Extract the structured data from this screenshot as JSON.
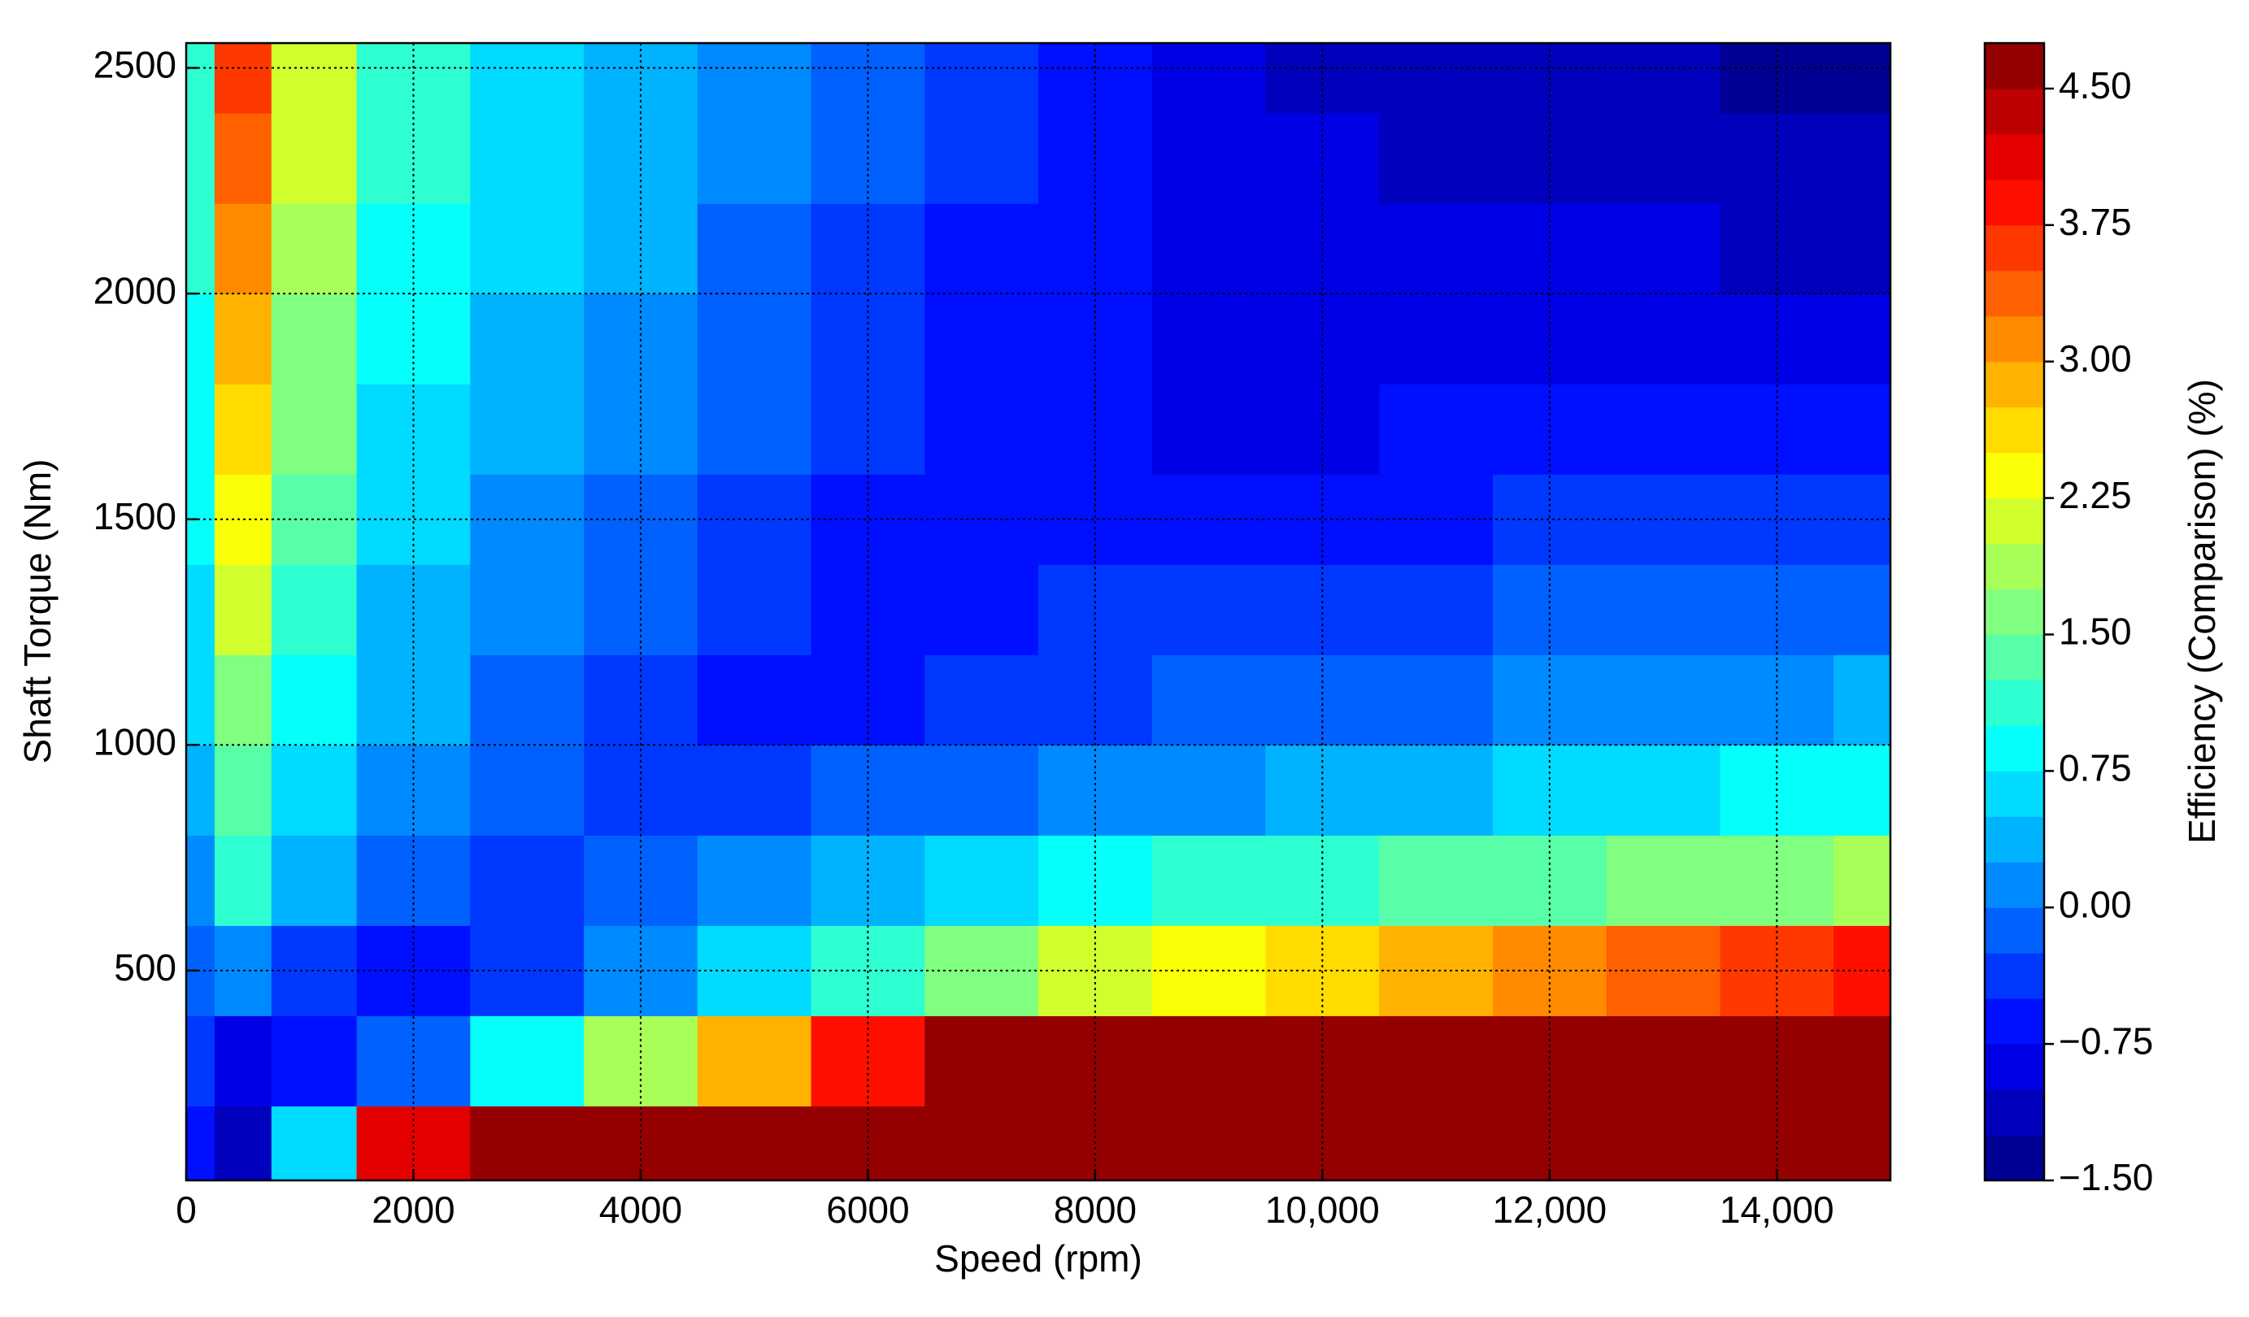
{
  "chart_data": {
    "type": "contour",
    "x_label": "Speed  (rpm)",
    "y_label": "Shaft Torque  (Nm)",
    "colorbar_label": "Efficiency (Comparison) (%)",
    "colormap": "jet",
    "clim": [
      -1.5,
      4.75
    ],
    "level_step": 0.25,
    "grid": true,
    "xlim": [
      0,
      15000
    ],
    "ylim": [
      35,
      2555
    ],
    "xticks": [
      0,
      2000,
      4000,
      6000,
      8000,
      {
        "value": 10000,
        "label": "10,000"
      },
      {
        "value": 12000,
        "label": "12,000"
      },
      {
        "value": 14000,
        "label": "14,000"
      }
    ],
    "yticks": [
      500,
      1000,
      1500,
      2000,
      2500
    ],
    "cticks": [
      {
        "value": -1.5,
        "label": "−1.50"
      },
      {
        "value": -0.75,
        "label": "−0.75"
      },
      {
        "value": 0,
        "label": "0.00"
      },
      {
        "value": 0.75,
        "label": "0.75"
      },
      {
        "value": 1.5,
        "label": "1.50"
      },
      {
        "value": 2.25,
        "label": "2.25"
      },
      {
        "value": 3,
        "label": "3.00"
      },
      {
        "value": 3.75,
        "label": "3.75"
      },
      {
        "value": 4.5,
        "label": "4.50"
      }
    ],
    "x": [
      0,
      500,
      1000,
      2000,
      3000,
      4000,
      5000,
      6000,
      7000,
      8000,
      9000,
      10000,
      11000,
      12000,
      13000,
      14000,
      15000
    ],
    "y": [
      100,
      300,
      500,
      700,
      900,
      1100,
      1300,
      1500,
      1700,
      1900,
      2100,
      2300,
      2500
    ],
    "z": [
      [
        -0.75,
        -1.25,
        0.5,
        4.0,
        4.75,
        4.75,
        4.75,
        4.75,
        4.75,
        4.75,
        4.75,
        4.75,
        4.75,
        4.75,
        4.75,
        4.75,
        4.75
      ],
      [
        -0.5,
        -1.0,
        -0.75,
        -0.25,
        0.75,
        1.75,
        2.75,
        3.75,
        4.75,
        4.75,
        4.75,
        4.75,
        4.75,
        4.75,
        4.75,
        4.75,
        4.75
      ],
      [
        -0.25,
        0.0,
        -0.5,
        -0.75,
        -0.5,
        0.0,
        0.5,
        1.0,
        1.5,
        2.0,
        2.25,
        2.5,
        2.75,
        3.0,
        3.25,
        3.5,
        3.75
      ],
      [
        0.0,
        1.0,
        0.25,
        -0.25,
        -0.5,
        -0.25,
        0.0,
        0.25,
        0.5,
        0.75,
        1.0,
        1.0,
        1.25,
        1.25,
        1.5,
        1.5,
        1.75
      ],
      [
        0.25,
        1.25,
        0.5,
        0.0,
        -0.25,
        -0.5,
        -0.5,
        -0.25,
        -0.25,
        0.0,
        0.0,
        0.25,
        0.25,
        0.5,
        0.5,
        0.75,
        0.75
      ],
      [
        0.5,
        1.5,
        0.75,
        0.25,
        -0.25,
        -0.5,
        -0.75,
        -0.75,
        -0.5,
        -0.5,
        -0.25,
        -0.25,
        -0.25,
        0.0,
        0.0,
        0.0,
        0.25
      ],
      [
        0.5,
        2.0,
        1.0,
        0.25,
        0.0,
        -0.25,
        -0.5,
        -0.75,
        -0.75,
        -0.5,
        -0.5,
        -0.5,
        -0.5,
        -0.25,
        -0.25,
        -0.25,
        -0.25
      ],
      [
        0.75,
        2.25,
        1.25,
        0.5,
        0.0,
        -0.25,
        -0.5,
        -0.75,
        -0.75,
        -0.75,
        -0.75,
        -0.75,
        -0.75,
        -0.5,
        -0.5,
        -0.5,
        -0.5
      ],
      [
        0.75,
        2.5,
        1.5,
        0.5,
        0.25,
        0.0,
        -0.25,
        -0.5,
        -0.75,
        -0.75,
        -1.0,
        -1.0,
        -0.75,
        -0.75,
        -0.75,
        -0.75,
        -0.75
      ],
      [
        0.75,
        2.75,
        1.5,
        0.75,
        0.25,
        0.0,
        -0.25,
        -0.5,
        -0.75,
        -0.75,
        -1.0,
        -1.0,
        -1.0,
        -1.0,
        -1.0,
        -1.0,
        -1.0
      ],
      [
        1.0,
        3.0,
        1.75,
        0.75,
        0.5,
        0.25,
        -0.25,
        -0.5,
        -0.75,
        -0.75,
        -1.0,
        -1.0,
        -1.0,
        -1.0,
        -1.0,
        -1.25,
        -1.25
      ],
      [
        1.0,
        3.25,
        2.0,
        1.0,
        0.5,
        0.25,
        0.0,
        -0.25,
        -0.5,
        -0.75,
        -1.0,
        -1.0,
        -1.25,
        -1.25,
        -1.25,
        -1.25,
        -1.25
      ],
      [
        1.0,
        3.5,
        2.0,
        1.0,
        0.5,
        0.25,
        0.0,
        -0.25,
        -0.5,
        -0.75,
        -1.0,
        -1.25,
        -1.25,
        -1.25,
        -1.25,
        -1.5,
        -1.5
      ]
    ]
  }
}
